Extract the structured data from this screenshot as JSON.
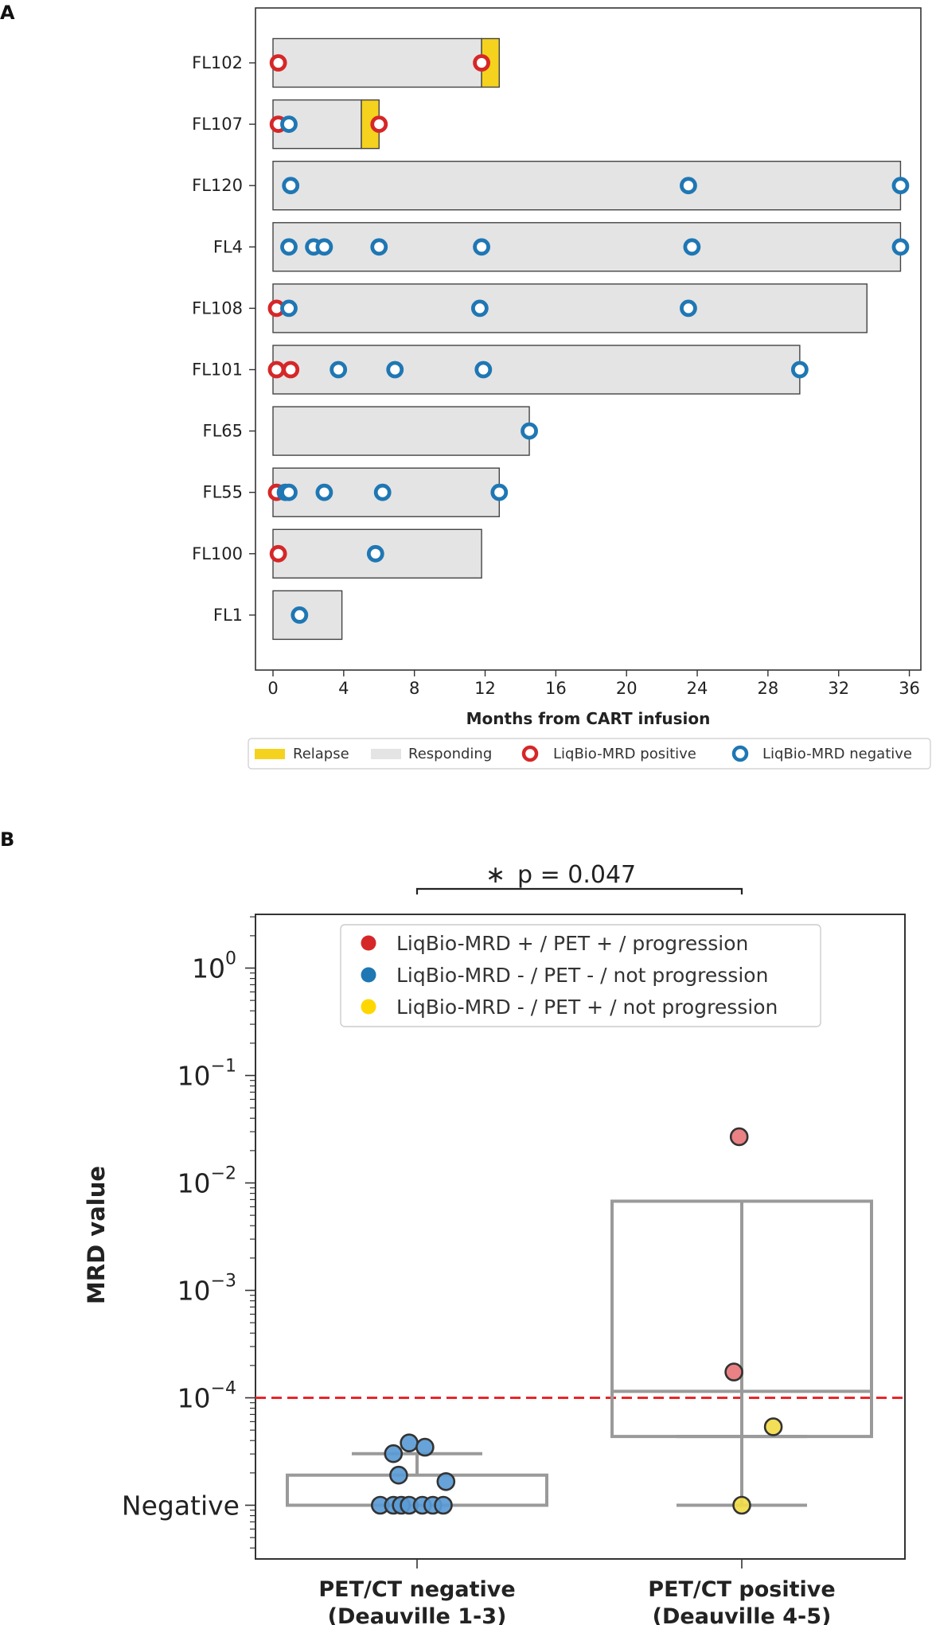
{
  "panel_labels": {
    "a": "A",
    "b": "B"
  },
  "colors": {
    "relapse": "#F5D21E",
    "responding": "#E4E4E4",
    "mrd_positive": "#D62728",
    "mrd_negative": "#1F77B4",
    "pos_point": "#E8767A",
    "neg_point": "#5A9BD5",
    "petpos_neg_point": "#F2DB4A",
    "box_gray": "#9A9A9A",
    "threshold": "#E8262A"
  },
  "chart_data": [
    {
      "type": "swimmer",
      "xlabel": "Months from CART infusion",
      "xlim": [
        -1,
        36.5
      ],
      "xticks": [
        0,
        4,
        8,
        12,
        16,
        20,
        24,
        28,
        32,
        36
      ],
      "legend": {
        "relapse": "Relapse",
        "responding": "Responding",
        "mrd_positive": "LiqBio-MRD positive",
        "mrd_negative": "LiqBio-MRD negative"
      },
      "patients": [
        {
          "id": "FL102",
          "responding_end": 11.8,
          "relapse_end": 12.8,
          "pos": [
            0.3,
            11.8
          ],
          "neg": []
        },
        {
          "id": "FL107",
          "responding_end": 5.0,
          "relapse_end": 6.0,
          "pos": [
            0.3,
            6.0
          ],
          "neg": [
            0.9
          ]
        },
        {
          "id": "FL120",
          "responding_end": 35.5,
          "relapse_end": null,
          "pos": [],
          "neg": [
            1.0,
            23.5,
            35.5
          ]
        },
        {
          "id": "FL4",
          "responding_end": 35.5,
          "relapse_end": null,
          "pos": [],
          "neg": [
            0.9,
            2.3,
            2.9,
            6.0,
            11.8,
            23.7,
            35.5
          ]
        },
        {
          "id": "FL108",
          "responding_end": 33.6,
          "relapse_end": null,
          "pos": [
            0.2
          ],
          "neg": [
            0.9,
            11.7,
            23.5
          ]
        },
        {
          "id": "FL101",
          "responding_end": 29.8,
          "relapse_end": null,
          "pos": [
            0.2,
            1.0
          ],
          "neg": [
            3.7,
            6.9,
            11.9,
            29.8
          ]
        },
        {
          "id": "FL65",
          "responding_end": 14.5,
          "relapse_end": null,
          "pos": [],
          "neg": [
            14.5
          ]
        },
        {
          "id": "FL55",
          "responding_end": 12.8,
          "relapse_end": null,
          "pos": [
            0.2
          ],
          "neg": [
            0.7,
            0.9,
            2.9,
            6.2,
            12.8
          ]
        },
        {
          "id": "FL100",
          "responding_end": 11.8,
          "relapse_end": null,
          "pos": [
            0.3
          ],
          "neg": [
            5.8
          ]
        },
        {
          "id": "FL1",
          "responding_end": 3.9,
          "relapse_end": null,
          "pos": [],
          "neg": [
            1.5
          ]
        }
      ]
    },
    {
      "type": "box",
      "ylabel": "MRD value",
      "yscale": "log",
      "ylim_log10": [
        -5.5,
        0.5
      ],
      "negative_log10": -5,
      "ytick_labels": [
        {
          "base": "10",
          "exp": "0",
          "log": 0
        },
        {
          "base": "10",
          "exp": "−1",
          "log": -1
        },
        {
          "base": "10",
          "exp": "−2",
          "log": -2
        },
        {
          "base": "10",
          "exp": "−3",
          "log": -3
        },
        {
          "base": "10",
          "exp": "−4",
          "log": -4
        }
      ],
      "negative_label": "Negative",
      "threshold_log10": -4,
      "significance": "p = 0.047",
      "significance_star": "∗",
      "legend": [
        {
          "label": "LiqBio-MRD + / PET + / progression",
          "color": "#D62728"
        },
        {
          "label": "LiqBio-MRD - / PET - / not progression",
          "color": "#1F77B4"
        },
        {
          "label": "LiqBio-MRD - / PET + / not progression",
          "color": "#FFD700"
        }
      ],
      "groups": [
        {
          "name_line1": "PET/CT negative",
          "name_line2": "(Deauville 1-3)",
          "box_log10": {
            "q1": -5,
            "median": -5,
            "q3": -4.72,
            "wlow": -5,
            "whigh": -4.52
          },
          "points": [
            {
              "log": -4.42,
              "dx": -0.03,
              "cls": "neg"
            },
            {
              "log": -4.46,
              "dx": 0.03,
              "cls": "neg"
            },
            {
              "log": -4.52,
              "dx": -0.09,
              "cls": "neg"
            },
            {
              "log": -4.72,
              "dx": -0.07,
              "cls": "neg"
            },
            {
              "log": -4.78,
              "dx": 0.11,
              "cls": "neg"
            },
            {
              "log": -5,
              "dx": -0.14,
              "cls": "neg"
            },
            {
              "log": -5,
              "dx": -0.09,
              "cls": "neg"
            },
            {
              "log": -5,
              "dx": -0.06,
              "cls": "neg"
            },
            {
              "log": -5,
              "dx": -0.03,
              "cls": "neg"
            },
            {
              "log": -5,
              "dx": 0.02,
              "cls": "neg"
            },
            {
              "log": -5,
              "dx": 0.06,
              "cls": "neg"
            },
            {
              "log": -5,
              "dx": 0.1,
              "cls": "neg"
            }
          ]
        },
        {
          "name_line1": "PET/CT positive",
          "name_line2": "(Deauville 4-5)",
          "box_log10": {
            "q1": -4.36,
            "median": -3.94,
            "q3": -2.17,
            "wlow": -5,
            "whigh": -4.36
          },
          "points": [
            {
              "log": -1.57,
              "dx": -0.01,
              "cls": "pos"
            },
            {
              "log": -3.76,
              "dx": -0.03,
              "cls": "pos"
            },
            {
              "log": -4.27,
              "dx": 0.12,
              "cls": "petpos_neg"
            },
            {
              "log": -5,
              "dx": 0.0,
              "cls": "petpos_neg"
            }
          ]
        }
      ]
    }
  ]
}
